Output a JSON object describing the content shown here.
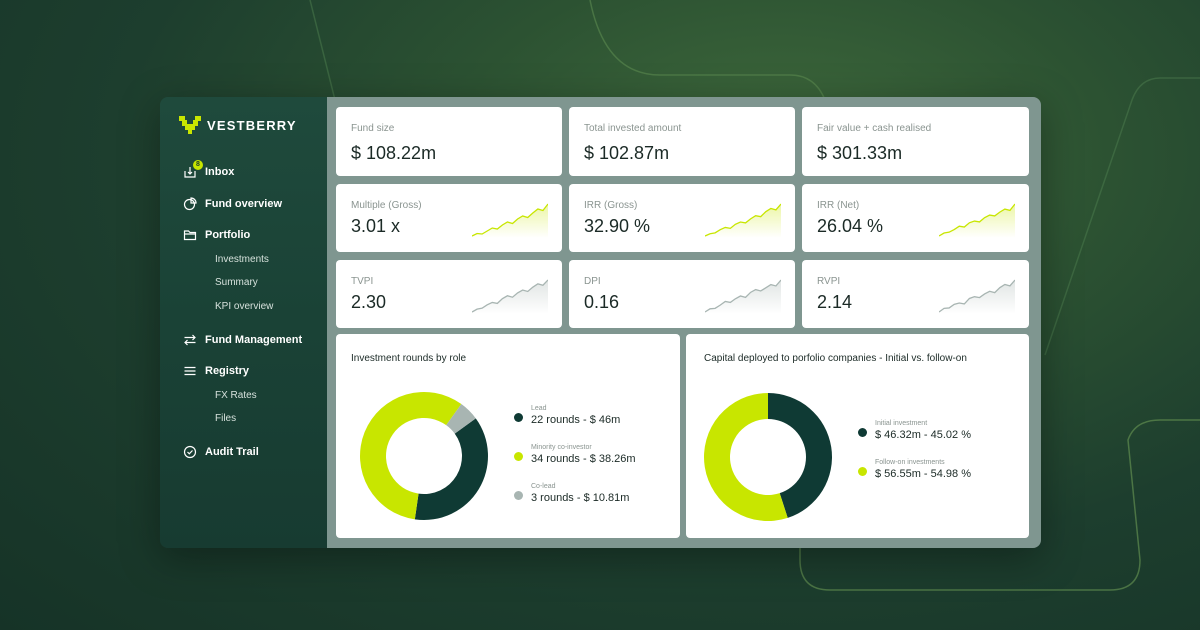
{
  "brand": {
    "name": "VESTBERRY",
    "logo": "vestberry-logo-icon"
  },
  "colors": {
    "accent": "#c8e600",
    "dark": "#0f3a34",
    "grey": "#a8b5b2",
    "sidebar": "#1c4538"
  },
  "sidebar": {
    "inbox": {
      "label": "Inbox",
      "badge": "8",
      "icon": "inbox-icon"
    },
    "fund_overview": {
      "label": "Fund overview",
      "icon": "pie-chart-icon"
    },
    "portfolio": {
      "label": "Portfolio",
      "icon": "folder-icon",
      "items": [
        "Investments",
        "Summary",
        "KPI overview"
      ]
    },
    "fund_management": {
      "label": "Fund Management",
      "icon": "swap-arrows-icon"
    },
    "registry": {
      "label": "Registry",
      "icon": "list-icon",
      "items": [
        "FX Rates",
        "Files"
      ]
    },
    "audit_trail": {
      "label": "Audit Trail",
      "icon": "check-circle-icon"
    }
  },
  "kpis": [
    {
      "label": "Fund size",
      "value": "$ 108.22m"
    },
    {
      "label": "Total invested amount",
      "value": "$ 102.87m"
    },
    {
      "label": "Fair value + cash realised",
      "value": "$ 301.33m"
    },
    {
      "label": "Multiple (Gross)",
      "value": "3.01 x",
      "spark": [
        2,
        2.5,
        2.4,
        3,
        3.6,
        3.4,
        4.2,
        4.8,
        4.5,
        5.4,
        6,
        5.7,
        6.6,
        7.4,
        7.1,
        8.4
      ],
      "spark_color": "#c8e600"
    },
    {
      "label": "IRR (Gross)",
      "value": "32.90 %",
      "spark": [
        1.5,
        2,
        2.2,
        2.9,
        3.4,
        3.2,
        4.1,
        4.6,
        4.4,
        5.3,
        6,
        5.8,
        6.9,
        7.6,
        7.3,
        8.6
      ],
      "spark_color": "#c8e600"
    },
    {
      "label": "IRR (Net)",
      "value": "26.04 %",
      "spark": [
        1.2,
        1.9,
        2.1,
        2.7,
        3.5,
        3.3,
        4.3,
        4.7,
        4.5,
        5.5,
        6.1,
        5.9,
        6.8,
        7.5,
        7.2,
        8.7
      ],
      "spark_color": "#c8e600"
    },
    {
      "label": "TVPI",
      "value": "2.30",
      "spark": [
        1.5,
        2.1,
        2.3,
        3,
        3.5,
        3.3,
        4.3,
        4.9,
        4.6,
        5.5,
        6.1,
        5.8,
        6.7,
        7.4,
        7.1,
        8.2
      ],
      "spark_color": "#a8b5b2"
    },
    {
      "label": "DPI",
      "value": "0.16",
      "spark": [
        1.3,
        2,
        2.1,
        2.8,
        3.6,
        3.4,
        4.2,
        4.8,
        4.5,
        5.6,
        6.2,
        5.9,
        6.6,
        7.3,
        7,
        8.3
      ],
      "spark_color": "#a8b5b2"
    },
    {
      "label": "RVPI",
      "value": "2.14",
      "spark": [
        1.4,
        2.2,
        2.3,
        3.1,
        3.4,
        3.2,
        4.4,
        4.8,
        4.6,
        5.4,
        6,
        5.7,
        6.8,
        7.5,
        7.2,
        8.5
      ],
      "spark_color": "#a8b5b2"
    }
  ],
  "charts": {
    "rounds_by_role": {
      "title": "Investment rounds by role",
      "segments": [
        {
          "name": "Lead",
          "value": 22,
          "text": "22 rounds - $ 46m",
          "color": "#0f3a34"
        },
        {
          "name": "Minority co-investor",
          "value": 34,
          "text": "34 rounds - $ 38.26m",
          "color": "#c8e600"
        },
        {
          "name": "Co-lead",
          "value": 3,
          "text": "3 rounds - $ 10.81m",
          "color": "#a8b5b2"
        }
      ]
    },
    "capital_deployed": {
      "title": "Capital deployed to porfolio companies - Initial vs. follow-on",
      "segments": [
        {
          "name": "Initial investment",
          "value": 45.02,
          "text": "$ 46.32m - 45.02 %",
          "color": "#0f3a34"
        },
        {
          "name": "Follow-on investments",
          "value": 54.98,
          "text": "$ 56.55m - 54.98 %",
          "color": "#c8e600"
        }
      ]
    }
  },
  "chart_data": [
    {
      "type": "pie",
      "title": "Investment rounds by role",
      "categories": [
        "Lead",
        "Minority co-investor",
        "Co-lead"
      ],
      "values": [
        22,
        34,
        3
      ]
    },
    {
      "type": "pie",
      "title": "Capital deployed to porfolio companies - Initial vs. follow-on",
      "categories": [
        "Initial investment",
        "Follow-on investments"
      ],
      "values": [
        45.02,
        54.98
      ]
    }
  ]
}
